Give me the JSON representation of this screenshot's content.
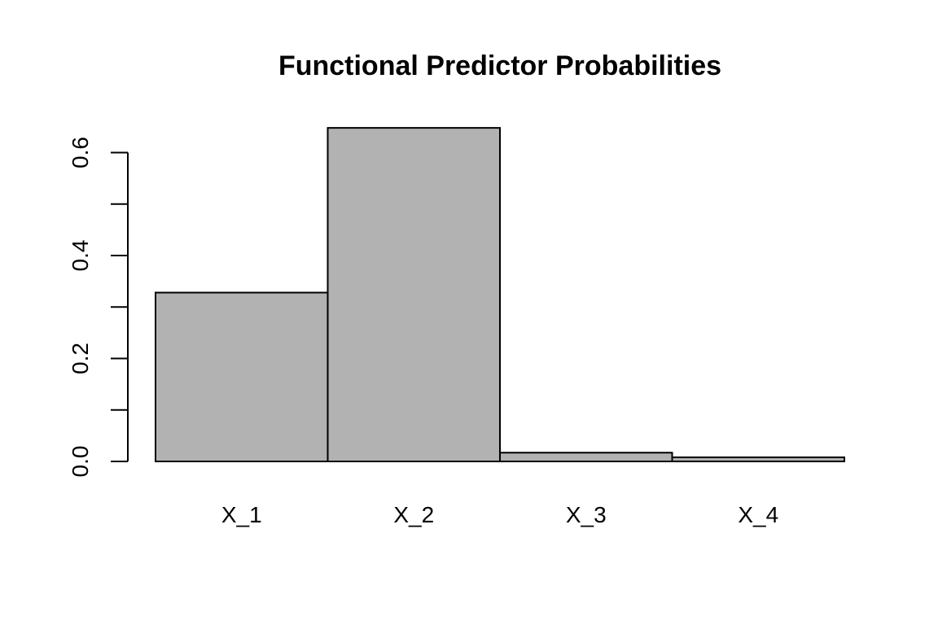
{
  "chart_data": {
    "type": "bar",
    "title": "Functional Predictor Probabilities",
    "xlabel": "",
    "ylabel": "",
    "categories": [
      "X_1",
      "X_2",
      "X_3",
      "X_4"
    ],
    "values": [
      0.328,
      0.648,
      0.017,
      0.008
    ],
    "ylim": [
      0,
      0.65
    ],
    "yticks": [
      0.0,
      0.1,
      0.2,
      0.3,
      0.4,
      0.5,
      0.6
    ],
    "ytick_labels": [
      "0.0",
      "",
      "0.2",
      "",
      "0.4",
      "",
      "0.6"
    ],
    "bar_color": "#b2b2b2",
    "grid": false,
    "legend": "none"
  }
}
